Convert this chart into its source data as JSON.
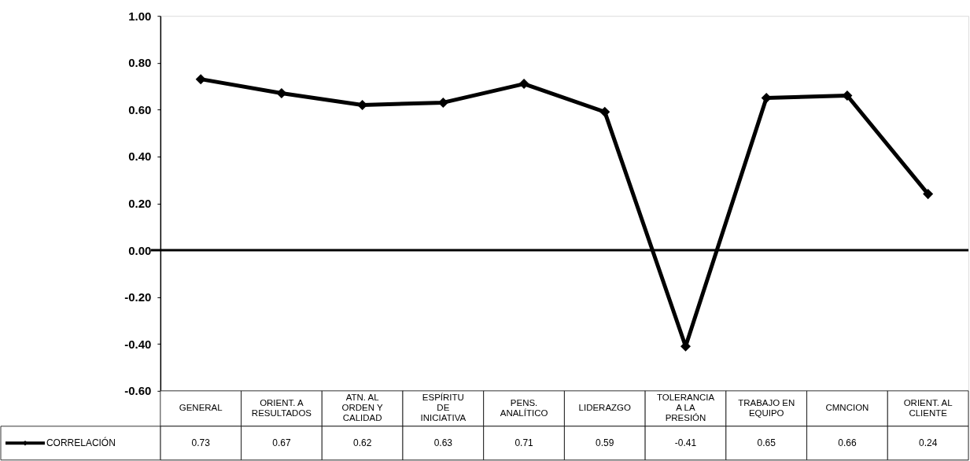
{
  "chart_data": {
    "type": "line",
    "categories": [
      "GENERAL",
      "ORIENT. A RESULTADOS",
      "ATN. AL ORDEN Y CALIDAD",
      "ESPÍRITU DE INICIATIVA",
      "PENS. ANALÍTICO",
      "LIDERAZGO",
      "TOLERANCIA A LA PRESIÓN",
      "TRABAJO EN EQUIPO",
      "CMNCION",
      "ORIENT. AL CLIENTE"
    ],
    "series": [
      {
        "name": "CORRELACIÓN",
        "color": "#000000",
        "values": [
          0.73,
          0.67,
          0.62,
          0.63,
          0.71,
          0.59,
          -0.41,
          0.65,
          0.66,
          0.24
        ]
      }
    ],
    "ylim": [
      -0.6,
      1.0
    ],
    "yticks": [
      {
        "value": -0.6,
        "label": "-0.60"
      },
      {
        "value": -0.4,
        "label": "-0.40"
      },
      {
        "value": -0.2,
        "label": "-0.20"
      },
      {
        "value": 0,
        "label": "0.00"
      },
      {
        "value": 0.2,
        "label": "0.20"
      },
      {
        "value": 0.4,
        "label": "0.40"
      },
      {
        "value": 0.6,
        "label": "0.60"
      },
      {
        "value": 0.8,
        "label": "0.80"
      },
      {
        "value": 1.0,
        "label": "1.00"
      }
    ],
    "ref_lines": [
      {
        "axis": "y",
        "value": 0,
        "color": "#000000"
      }
    ],
    "data_labels": true,
    "legend": "bottom left",
    "marker": "diamond",
    "line_style": "solid",
    "grid": false
  }
}
